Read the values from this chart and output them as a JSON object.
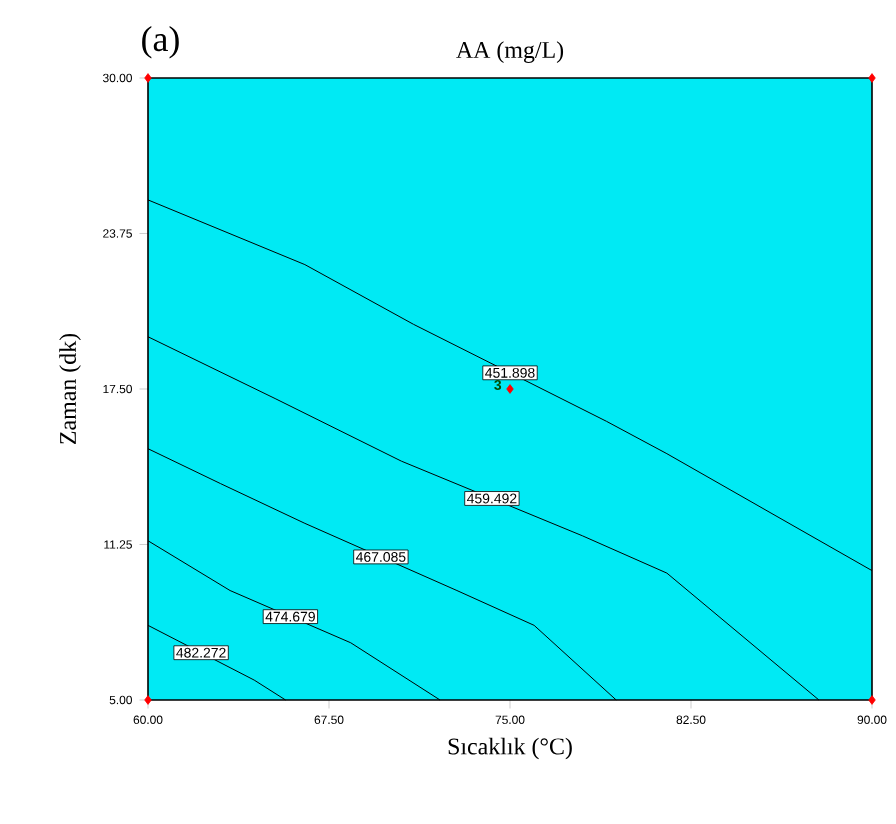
{
  "chart_data": {
    "type": "line",
    "title": "AA (mg/L)",
    "xlabel": "Sıcaklık (°C)",
    "ylabel": "Zaman (dk)",
    "xlim": [
      60,
      90
    ],
    "ylim": [
      5,
      30
    ],
    "xticks": [
      {
        "value": 60,
        "label": "60.00"
      },
      {
        "value": 67.5,
        "label": "67.50"
      },
      {
        "value": 75,
        "label": "75.00"
      },
      {
        "value": 82.5,
        "label": "82.50"
      },
      {
        "value": 90,
        "label": "90.00"
      }
    ],
    "yticks": [
      {
        "value": 5,
        "label": "5.00"
      },
      {
        "value": 11.25,
        "label": "11.25"
      },
      {
        "value": 17.5,
        "label": "17.50"
      },
      {
        "value": 23.75,
        "label": "23.75"
      },
      {
        "value": 30,
        "label": "30.00"
      }
    ],
    "line_style": "solid",
    "series": [
      {
        "name": "451.898",
        "color": "#000000",
        "x": [
          60,
          66.5,
          71,
          79,
          81.5,
          90
        ],
        "values": [
          25.1,
          22.5,
          20.1,
          16.2,
          14.9,
          10.2
        ]
      },
      {
        "name": "459.492",
        "color": "#000000",
        "x": [
          60,
          65.3,
          70.5,
          78,
          81.5,
          87.8
        ],
        "values": [
          19.6,
          17.1,
          14.6,
          11.6,
          10.1,
          5
        ]
      },
      {
        "name": "467.085",
        "color": "#000000",
        "x": [
          60,
          63,
          66.5,
          72.8,
          76,
          79.4
        ],
        "values": [
          15.1,
          13.7,
          12.1,
          9.4,
          8.0,
          5
        ]
      },
      {
        "name": "474.679",
        "color": "#000000",
        "x": [
          60,
          63.4,
          68.4,
          72.1
        ],
        "values": [
          11.4,
          9.4,
          7.3,
          5
        ]
      },
      {
        "name": "482.272",
        "color": "#000000",
        "x": [
          60,
          64.4,
          65.7
        ],
        "values": [
          8.0,
          5.8,
          5
        ]
      },
      {
        "type": "scatter",
        "marker": "diamond",
        "color": "#ff0000",
        "x": [
          60,
          60,
          90,
          90,
          75
        ],
        "values": [
          5,
          30,
          5,
          30,
          17.5
        ]
      }
    ],
    "annotations": [
      "(a)",
      {
        "text": "3",
        "x": 75,
        "y": 17.5
      }
    ]
  }
}
